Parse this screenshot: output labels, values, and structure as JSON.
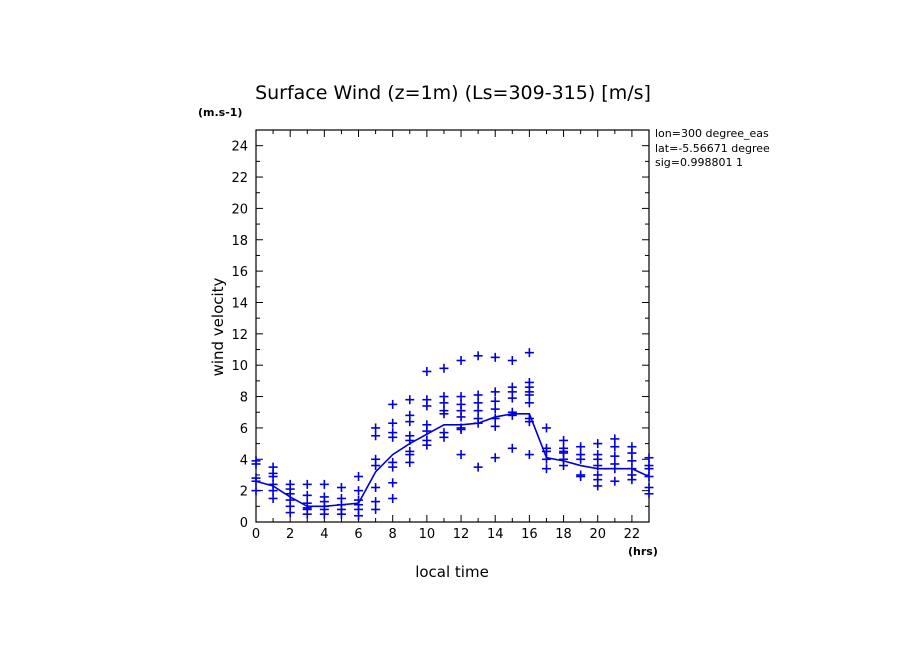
{
  "chart_data": {
    "type": "scatter",
    "title": "Surface Wind (z=1m) (Ls=309-315) [m/s]",
    "xlabel": "local time",
    "ylabel": "wind velocity",
    "x_unit": "(hrs)",
    "y_unit": "(m.s-1)",
    "xlim": [
      0,
      23
    ],
    "ylim": [
      0,
      25
    ],
    "xticks": [
      0,
      2,
      4,
      6,
      8,
      10,
      12,
      14,
      16,
      18,
      20,
      22
    ],
    "yticks": [
      0,
      2,
      4,
      6,
      8,
      10,
      12,
      14,
      16,
      18,
      20,
      22,
      24
    ],
    "annotations": [
      "lon=300 degree_eas",
      "lat=-5.56671 degree",
      "sig=0.998801 1"
    ],
    "color": "#0000dd",
    "grid": false,
    "legend": "none",
    "series": [
      {
        "type": "line",
        "x": [
          0,
          1,
          2,
          3,
          4,
          5,
          6,
          7,
          8,
          9,
          10,
          11,
          12,
          13,
          14,
          15,
          16,
          17,
          18,
          19,
          20,
          21,
          22,
          23
        ],
        "y": [
          2.6,
          2.3,
          1.6,
          1.0,
          1.0,
          1.1,
          1.2,
          3.2,
          4.3,
          5.0,
          5.6,
          6.2,
          6.2,
          6.3,
          6.7,
          6.9,
          6.9,
          4.1,
          3.9,
          3.6,
          3.4,
          3.4,
          3.4,
          2.9
        ]
      },
      {
        "type": "scatter",
        "marker": "+",
        "points": [
          [
            0,
            3.9
          ],
          [
            0,
            3.7
          ],
          [
            0,
            2.8
          ],
          [
            0,
            2.6
          ],
          [
            0,
            2.0
          ],
          [
            1,
            3.5
          ],
          [
            1,
            3.1
          ],
          [
            1,
            2.9
          ],
          [
            1,
            2.4
          ],
          [
            1,
            2.0
          ],
          [
            1,
            1.5
          ],
          [
            2,
            2.4
          ],
          [
            2,
            2.1
          ],
          [
            2,
            1.8
          ],
          [
            2,
            1.4
          ],
          [
            2,
            1.0
          ],
          [
            2,
            0.6
          ],
          [
            3,
            2.4
          ],
          [
            3,
            1.7
          ],
          [
            3,
            1.2
          ],
          [
            3,
            0.9
          ],
          [
            3,
            0.8
          ],
          [
            3,
            0.5
          ],
          [
            4,
            2.4
          ],
          [
            4,
            1.6
          ],
          [
            4,
            1.3
          ],
          [
            4,
            1.0
          ],
          [
            4,
            0.8
          ],
          [
            4,
            0.5
          ],
          [
            5,
            2.2
          ],
          [
            5,
            1.5
          ],
          [
            5,
            1.1
          ],
          [
            5,
            0.8
          ],
          [
            5,
            0.5
          ],
          [
            6,
            2.9
          ],
          [
            6,
            2.0
          ],
          [
            6,
            1.4
          ],
          [
            6,
            1.1
          ],
          [
            6,
            0.8
          ],
          [
            6,
            0.4
          ],
          [
            7,
            6.0
          ],
          [
            7,
            5.5
          ],
          [
            7,
            4.0
          ],
          [
            7,
            3.6
          ],
          [
            7,
            2.2
          ],
          [
            7,
            1.3
          ],
          [
            7,
            0.8
          ],
          [
            8,
            7.5
          ],
          [
            8,
            6.3
          ],
          [
            8,
            5.7
          ],
          [
            8,
            5.4
          ],
          [
            8,
            3.8
          ],
          [
            8,
            3.5
          ],
          [
            8,
            2.5
          ],
          [
            8,
            1.5
          ],
          [
            9,
            7.8
          ],
          [
            9,
            6.8
          ],
          [
            9,
            6.4
          ],
          [
            9,
            5.5
          ],
          [
            9,
            5.2
          ],
          [
            9,
            4.5
          ],
          [
            9,
            4.3
          ],
          [
            9,
            3.8
          ],
          [
            10,
            9.6
          ],
          [
            10,
            7.8
          ],
          [
            10,
            7.4
          ],
          [
            10,
            6.2
          ],
          [
            10,
            5.8
          ],
          [
            10,
            5.2
          ],
          [
            10,
            4.9
          ],
          [
            11,
            9.8
          ],
          [
            11,
            8.0
          ],
          [
            11,
            7.6
          ],
          [
            11,
            7.1
          ],
          [
            11,
            6.9
          ],
          [
            11,
            5.7
          ],
          [
            11,
            5.4
          ],
          [
            12,
            10.3
          ],
          [
            12,
            8.0
          ],
          [
            12,
            7.5
          ],
          [
            12,
            7.1
          ],
          [
            12,
            6.7
          ],
          [
            12,
            6.0
          ],
          [
            12,
            5.9
          ],
          [
            12,
            4.3
          ],
          [
            13,
            10.6
          ],
          [
            13,
            8.1
          ],
          [
            13,
            7.6
          ],
          [
            13,
            7.1
          ],
          [
            13,
            6.6
          ],
          [
            13,
            6.3
          ],
          [
            13,
            3.5
          ],
          [
            14,
            10.5
          ],
          [
            14,
            8.3
          ],
          [
            14,
            7.7
          ],
          [
            14,
            7.2
          ],
          [
            14,
            6.6
          ],
          [
            14,
            6.1
          ],
          [
            14,
            4.1
          ],
          [
            15,
            10.3
          ],
          [
            15,
            8.6
          ],
          [
            15,
            8.3
          ],
          [
            15,
            7.9
          ],
          [
            15,
            7.0
          ],
          [
            15,
            6.8
          ],
          [
            15,
            4.7
          ],
          [
            16,
            10.8
          ],
          [
            16,
            8.9
          ],
          [
            16,
            8.6
          ],
          [
            16,
            8.3
          ],
          [
            16,
            8.1
          ],
          [
            16,
            7.6
          ],
          [
            16,
            6.6
          ],
          [
            16,
            6.4
          ],
          [
            16,
            4.3
          ],
          [
            17,
            6.0
          ],
          [
            17,
            4.7
          ],
          [
            17,
            4.5
          ],
          [
            17,
            4.0
          ],
          [
            17,
            3.4
          ],
          [
            18,
            5.2
          ],
          [
            18,
            4.7
          ],
          [
            18,
            4.5
          ],
          [
            18,
            4.4
          ],
          [
            18,
            4.0
          ],
          [
            18,
            3.6
          ],
          [
            19,
            4.8
          ],
          [
            19,
            4.3
          ],
          [
            19,
            4.0
          ],
          [
            19,
            3.0
          ],
          [
            19,
            2.9
          ],
          [
            20,
            5.0
          ],
          [
            20,
            4.3
          ],
          [
            20,
            4.0
          ],
          [
            20,
            3.6
          ],
          [
            20,
            3.0
          ],
          [
            20,
            2.7
          ],
          [
            20,
            2.3
          ],
          [
            21,
            5.3
          ],
          [
            21,
            4.8
          ],
          [
            21,
            4.2
          ],
          [
            21,
            3.7
          ],
          [
            21,
            3.4
          ],
          [
            21,
            2.6
          ],
          [
            22,
            4.8
          ],
          [
            22,
            4.4
          ],
          [
            22,
            3.9
          ],
          [
            22,
            3.4
          ],
          [
            22,
            3.0
          ],
          [
            22,
            2.7
          ],
          [
            23,
            4.1
          ],
          [
            23,
            3.6
          ],
          [
            23,
            3.4
          ],
          [
            23,
            2.9
          ],
          [
            23,
            2.2
          ],
          [
            23,
            1.8
          ]
        ]
      }
    ]
  }
}
